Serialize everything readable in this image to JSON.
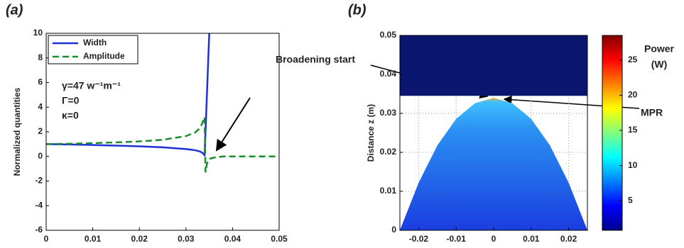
{
  "chart_data": [
    {
      "type": "line",
      "panel_label": "(a)",
      "ylabel": "Normalized quantities",
      "x": [
        0,
        0.005,
        0.01,
        0.015,
        0.02,
        0.025,
        0.03,
        0.032,
        0.033,
        0.0335,
        0.034,
        0.0342,
        0.0345,
        0.0348,
        0.035,
        0.036,
        0.038,
        0.04,
        0.045,
        0.05
      ],
      "series": [
        {
          "name": "Width",
          "color": "#1f2fd6",
          "style": "solid",
          "values": [
            1.0,
            0.97,
            0.93,
            0.88,
            0.82,
            0.74,
            0.6,
            0.5,
            0.4,
            0.3,
            0.1,
            2,
            5,
            8,
            10,
            null,
            null,
            null,
            null,
            null
          ]
        },
        {
          "name": "Amplitude",
          "color": "#16902a",
          "style": "dashed",
          "values": [
            1.0,
            1.03,
            1.08,
            1.14,
            1.22,
            1.35,
            1.65,
            1.95,
            2.3,
            2.7,
            3.2,
            -1.3,
            -0.6,
            -0.3,
            -0.2,
            -0.1,
            0,
            0,
            0,
            0
          ]
        }
      ],
      "annotations": [
        "γ=47 w⁻¹m⁻¹",
        "Γ=0",
        "κ=0"
      ],
      "xlim": [
        0,
        0.05
      ],
      "xticks": [
        0,
        0.01,
        0.02,
        0.03,
        0.04,
        0.05
      ],
      "ylim": [
        -6,
        10
      ],
      "yticks": [
        -6,
        -4,
        -2,
        0,
        2,
        4,
        6,
        8,
        10
      ],
      "legend": "upper-left",
      "grid": false
    },
    {
      "type": "field",
      "panel_label": "(b)",
      "ylabel": "Distance z (m)",
      "boundary": {
        "x": [
          -0.025,
          -0.02,
          -0.015,
          -0.01,
          -0.005,
          0,
          0.005,
          0.01,
          0.015,
          0.02,
          0.025
        ],
        "z": [
          0,
          0.0122,
          0.0218,
          0.0286,
          0.0326,
          0.034,
          0.0326,
          0.0286,
          0.0218,
          0.0122,
          0
        ]
      },
      "top_region": [
        0.0345,
        0.05
      ],
      "top_color": "#0b1670",
      "annotations": [
        "Broadening start",
        "MPR"
      ],
      "colorbar_label": [
        "Power",
        "(W)"
      ],
      "clim": [
        0.8,
        28.5
      ],
      "cticks": [
        5,
        10,
        15,
        20,
        25
      ],
      "xlim": [
        -0.025,
        0.025
      ],
      "xticks": [
        -0.02,
        -0.01,
        0,
        0.01,
        0.02
      ],
      "ylim": [
        0,
        0.05
      ],
      "yticks": [
        0,
        0.01,
        0.02,
        0.03,
        0.04,
        0.05
      ],
      "grid": true
    }
  ]
}
